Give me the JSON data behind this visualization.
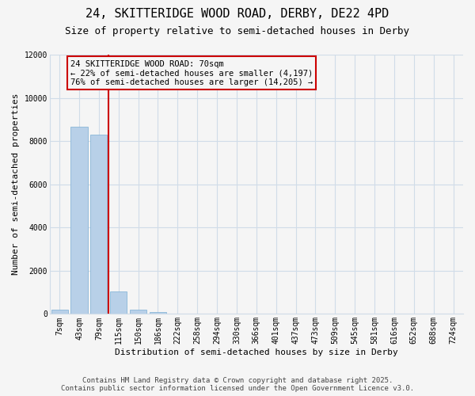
{
  "title": "24, SKITTERIDGE WOOD ROAD, DERBY, DE22 4PD",
  "subtitle": "Size of property relative to semi-detached houses in Derby",
  "xlabel": "Distribution of semi-detached houses by size in Derby",
  "ylabel": "Number of semi-detached properties",
  "categories": [
    "7sqm",
    "43sqm",
    "79sqm",
    "115sqm",
    "150sqm",
    "186sqm",
    "222sqm",
    "258sqm",
    "294sqm",
    "330sqm",
    "366sqm",
    "401sqm",
    "437sqm",
    "473sqm",
    "509sqm",
    "545sqm",
    "581sqm",
    "616sqm",
    "652sqm",
    "688sqm",
    "724sqm"
  ],
  "values": [
    200,
    8650,
    8300,
    1050,
    200,
    100,
    30,
    10,
    5,
    2,
    1,
    0,
    0,
    0,
    0,
    0,
    0,
    0,
    0,
    0,
    0
  ],
  "bar_color": "#b8d0e8",
  "bar_edgecolor": "#7aadd4",
  "vline_color": "#cc0000",
  "vline_pos": 2.5,
  "annotation_text": "24 SKITTERIDGE WOOD ROAD: 70sqm\n← 22% of semi-detached houses are smaller (4,197)\n76% of semi-detached houses are larger (14,205) →",
  "annotation_box_color": "#cc0000",
  "annotation_bg": "#f5f5f5",
  "ylim": [
    0,
    12000
  ],
  "yticks": [
    0,
    2000,
    4000,
    6000,
    8000,
    10000,
    12000
  ],
  "footer_line1": "Contains HM Land Registry data © Crown copyright and database right 2025.",
  "footer_line2": "Contains public sector information licensed under the Open Government Licence v3.0.",
  "background_color": "#f5f5f5",
  "grid_color": "#d0dce8",
  "title_fontsize": 11,
  "subtitle_fontsize": 9,
  "tick_fontsize": 7,
  "label_fontsize": 8,
  "annotation_fontsize": 7.5,
  "footer_fontsize": 6.5
}
